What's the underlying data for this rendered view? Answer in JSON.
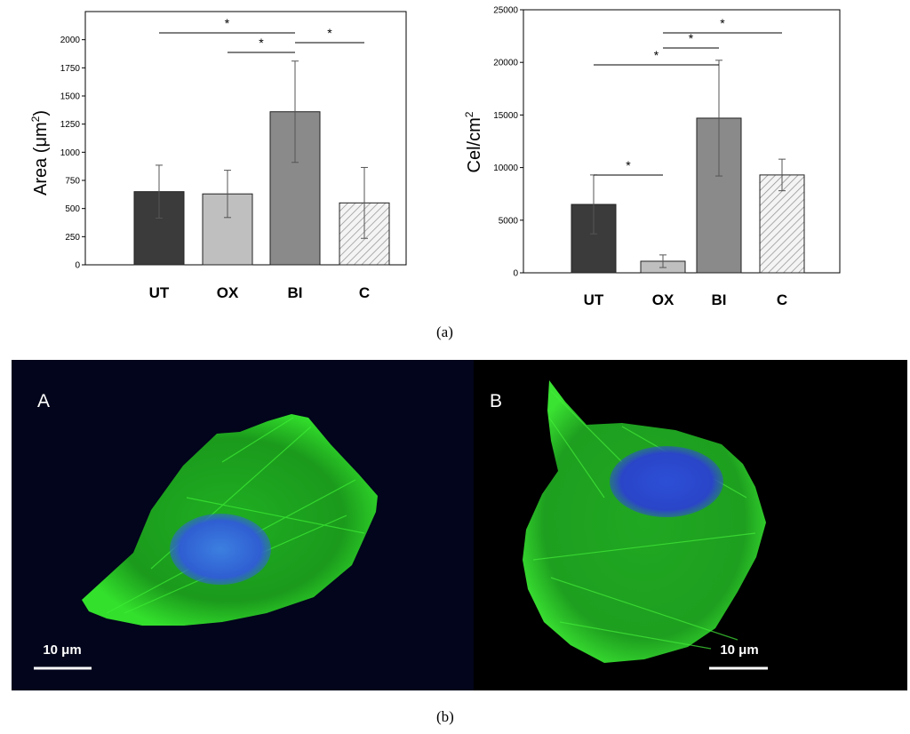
{
  "figure": {
    "caption_a": "(a)",
    "caption_b": "(b)"
  },
  "chart_data": [
    {
      "type": "bar",
      "categories": [
        "UT",
        "OX",
        "BI",
        "C"
      ],
      "values": [
        650,
        630,
        1360,
        550
      ],
      "errors": [
        235,
        210,
        450,
        315
      ],
      "ylabel": "Area (μm²)",
      "ylabel_main": "Area (",
      "ylabel_unit": "μm",
      "ylabel_sup": "2",
      "ylabel_close": ")",
      "ylim": [
        0,
        2250
      ],
      "yticks": [
        0,
        250,
        500,
        750,
        1000,
        1250,
        1500,
        1750,
        2000
      ],
      "bar_colors": [
        "#3b3b3b",
        "#bfbfbf",
        "#8a8a8a",
        "hatch"
      ],
      "significance": [
        {
          "from": "UT",
          "to": "BI",
          "label": "*"
        },
        {
          "from": "OX",
          "to": "BI",
          "label": "*"
        },
        {
          "from": "BI",
          "to": "C",
          "label": "*"
        }
      ]
    },
    {
      "type": "bar",
      "categories": [
        "UT",
        "OX",
        "BI",
        "C"
      ],
      "values": [
        6500,
        1100,
        14700,
        9300
      ],
      "errors": [
        2800,
        600,
        5500,
        1500
      ],
      "ylabel": "Cel/cm²",
      "ylabel_main": "Cel/cm",
      "ylabel_sup": "2",
      "ylim": [
        0,
        25000
      ],
      "yticks": [
        0,
        5000,
        10000,
        15000,
        20000,
        25000
      ],
      "bar_colors": [
        "#3b3b3b",
        "#bfbfbf",
        "#8a8a8a",
        "hatch"
      ],
      "significance": [
        {
          "from": "UT",
          "to": "OX",
          "label": "*"
        },
        {
          "from": "UT",
          "to": "BI",
          "label": "*"
        },
        {
          "from": "OX",
          "to": "BI",
          "label": "*"
        },
        {
          "from": "OX",
          "to": "C",
          "label": "*"
        }
      ]
    }
  ],
  "micrographs": [
    {
      "label": "A",
      "scale_bar": "10 μm"
    },
    {
      "label": "B",
      "scale_bar": "10 μm"
    }
  ],
  "colors": {
    "actin": "#22d81e",
    "nucleus": "#2a5bd6",
    "background": "#000000"
  }
}
